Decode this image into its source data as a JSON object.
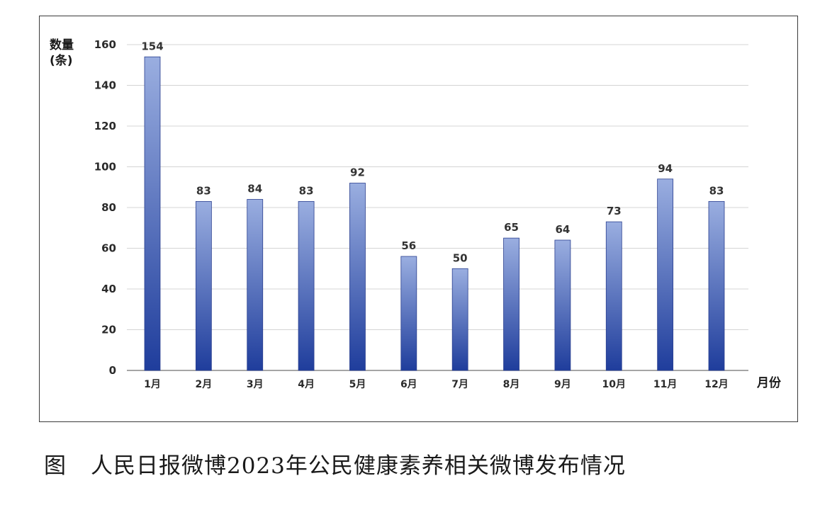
{
  "chart_data": {
    "type": "bar",
    "categories": [
      "1月",
      "2月",
      "3月",
      "4月",
      "5月",
      "6月",
      "7月",
      "8月",
      "9月",
      "10月",
      "11月",
      "12月"
    ],
    "values": [
      154,
      83,
      84,
      83,
      92,
      56,
      50,
      65,
      64,
      73,
      94,
      83
    ],
    "ylabel_line1": "数量",
    "ylabel_line2": "(条)",
    "xlabel": "月份",
    "ylim": [
      0,
      160
    ],
    "yticks": [
      0,
      20,
      40,
      60,
      80,
      100,
      120,
      140,
      160
    ],
    "grid": true,
    "bar_color_top": "#9aaee0",
    "bar_color_bottom": "#1f3d9c"
  },
  "caption": {
    "figure_label": "图",
    "text": "人民日报微博2023年公民健康素养相关微博发布情况"
  }
}
